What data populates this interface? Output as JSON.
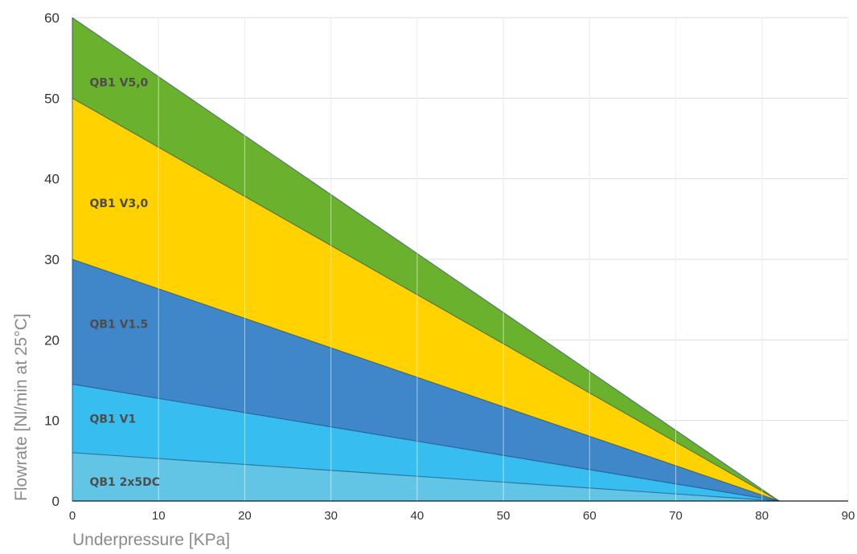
{
  "chart_data": {
    "type": "area",
    "xlabel": "Underpressure [KPa]",
    "ylabel": "Flowrate [Nl/min at 25°C]",
    "xlim": [
      0,
      90
    ],
    "ylim": [
      0,
      60
    ],
    "xticks": [
      "0",
      "10",
      "20",
      "30",
      "40",
      "50",
      "60",
      "70",
      "80",
      "90"
    ],
    "yticks": [
      "0",
      "10",
      "20",
      "30",
      "40",
      "50",
      "60"
    ],
    "grid": true,
    "series": [
      {
        "name": "QB1 V5,0",
        "color": "#6ab22e",
        "points": [
          [
            0,
            60
          ],
          [
            82,
            0
          ]
        ],
        "label_at": [
          2,
          52
        ]
      },
      {
        "name": "QB1 V3,0",
        "color": "#ffd200",
        "points": [
          [
            0,
            50
          ],
          [
            82,
            0
          ]
        ],
        "label_at": [
          2,
          37
        ]
      },
      {
        "name": "QB1 V1.5",
        "color": "#3f87c8",
        "points": [
          [
            0,
            30
          ],
          [
            82,
            0
          ]
        ],
        "label_at": [
          2,
          22
        ]
      },
      {
        "name": "QB1 V1",
        "color": "#38bdf0",
        "points": [
          [
            0,
            14.5
          ],
          [
            82,
            0
          ]
        ],
        "label_at": [
          2,
          10.2
        ]
      },
      {
        "name": "QB1 2x5DC",
        "color": "#62c5e5",
        "points": [
          [
            0,
            6
          ],
          [
            82,
            0
          ]
        ],
        "label_at": [
          2,
          2.4
        ]
      }
    ]
  }
}
